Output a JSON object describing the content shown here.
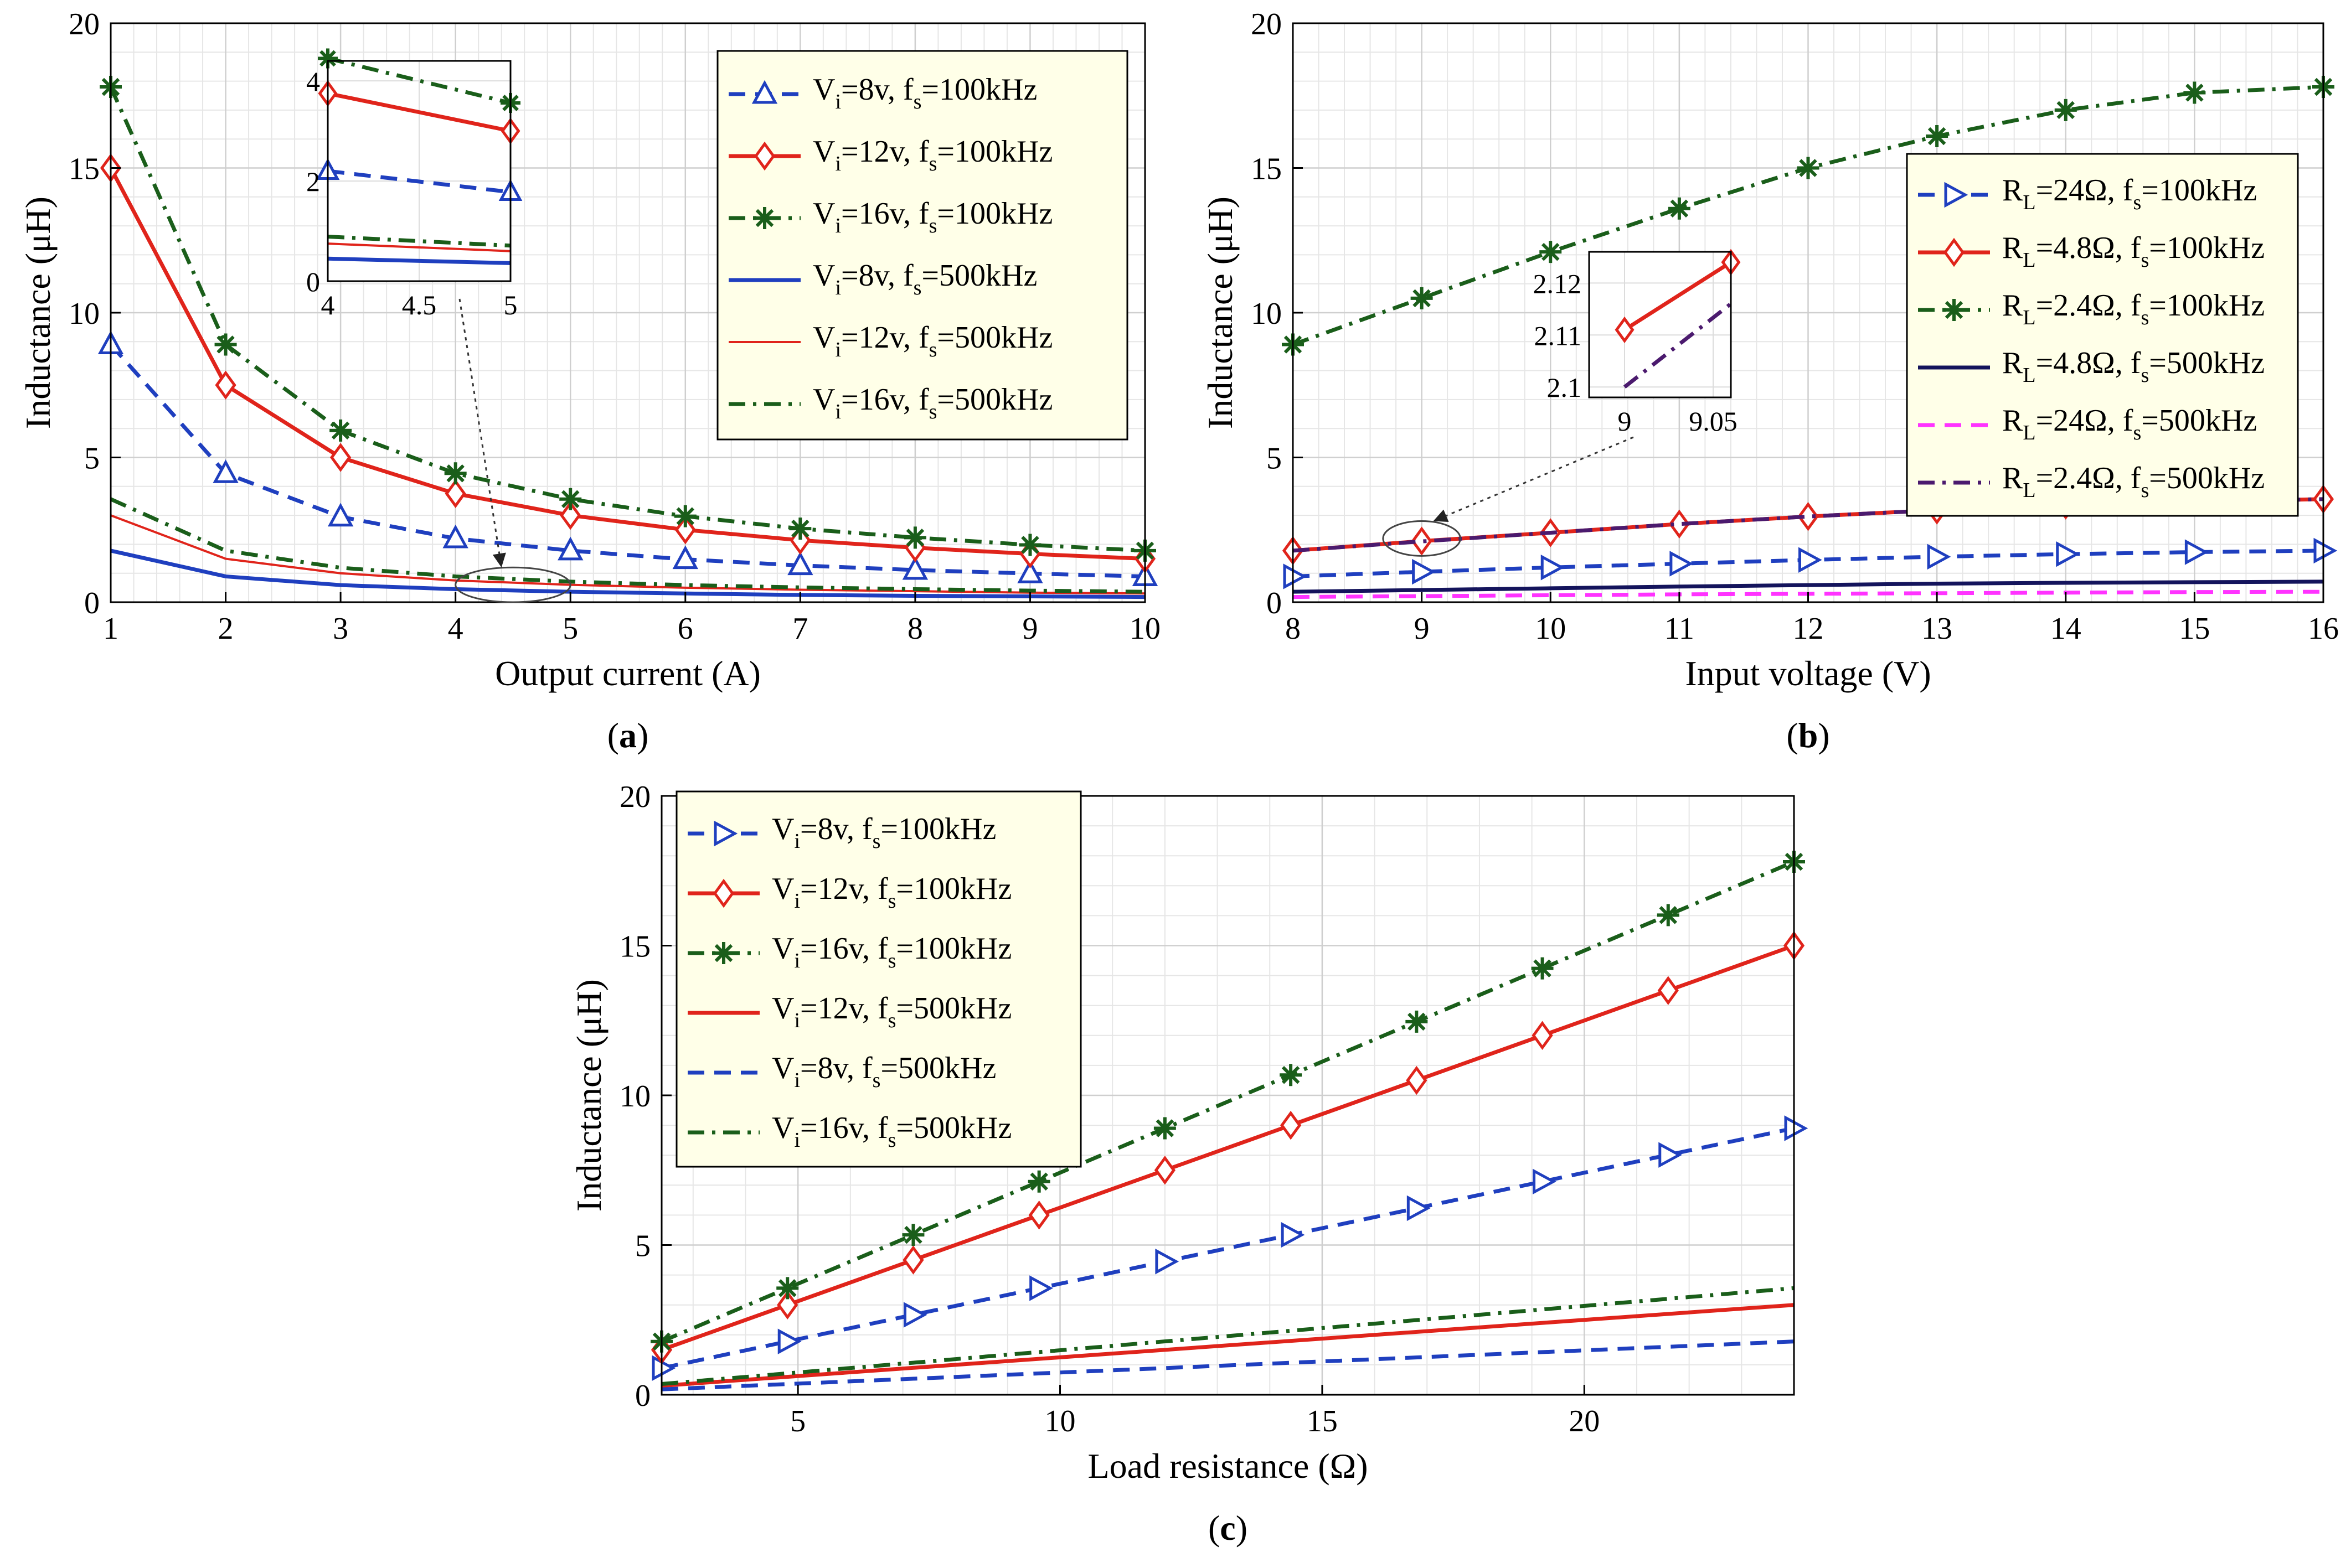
{
  "chart_data": [
    {
      "id": "a",
      "type": "line",
      "panel_label_open": "(",
      "panel_label_letter": "a",
      "panel_label_close": ")",
      "xlabel": "Output current (A)",
      "ylabel": "Inductance (μH)",
      "xlim": [
        1,
        10
      ],
      "ylim": [
        0,
        20
      ],
      "xticks": [
        1,
        2,
        3,
        4,
        5,
        6,
        7,
        8,
        9,
        10
      ],
      "yticks": [
        0,
        5,
        10,
        15,
        20
      ],
      "grid": true,
      "legend_position": "top-right",
      "series": [
        {
          "name": "Vi=8v, fs=100kHz",
          "var": "V",
          "var_sub": "i",
          "var_val": "=8v, ",
          "f_sub": "s",
          "f_val": "=100kHz",
          "color": "#1f3fbf",
          "dash": "dashed",
          "marker": "triangle-up",
          "x": [
            1,
            2,
            3,
            4,
            5,
            6,
            7,
            8,
            9,
            10
          ],
          "values": [
            8.9,
            4.45,
            2.95,
            2.2,
            1.78,
            1.48,
            1.27,
            1.11,
            0.99,
            0.89
          ]
        },
        {
          "name": "Vi=12v, fs=100kHz",
          "var": "V",
          "var_sub": "i",
          "var_val": "=12v, ",
          "f_sub": "s",
          "f_val": "=100kHz",
          "color": "#e0241b",
          "dash": "solid",
          "marker": "diamond",
          "x": [
            1,
            2,
            3,
            4,
            5,
            6,
            7,
            8,
            9,
            10
          ],
          "values": [
            15.0,
            7.5,
            5.0,
            3.75,
            3.0,
            2.5,
            2.14,
            1.88,
            1.67,
            1.5
          ]
        },
        {
          "name": "Vi=16v, fs=100kHz",
          "var": "V",
          "var_sub": "i",
          "var_val": "=16v, ",
          "f_sub": "s",
          "f_val": "=100kHz",
          "color": "#1a5e1a",
          "dash": "dashdot",
          "marker": "star",
          "x": [
            1,
            2,
            3,
            4,
            5,
            6,
            7,
            8,
            9,
            10
          ],
          "values": [
            17.8,
            8.9,
            5.93,
            4.45,
            3.56,
            2.97,
            2.54,
            2.23,
            1.98,
            1.78
          ]
        },
        {
          "name": "Vi=8v, fs=500kHz",
          "var": "V",
          "var_sub": "i",
          "var_val": "=8v, ",
          "f_sub": "s",
          "f_val": "=500kHz",
          "color": "#1f3fbf",
          "dash": "solid",
          "marker": "none",
          "x": [
            1,
            2,
            3,
            4,
            5,
            6,
            7,
            8,
            9,
            10
          ],
          "values": [
            1.78,
            0.89,
            0.59,
            0.45,
            0.36,
            0.3,
            0.25,
            0.22,
            0.2,
            0.18
          ]
        },
        {
          "name": "Vi=12v, fs=500kHz",
          "var": "V",
          "var_sub": "i",
          "var_val": "=12v, ",
          "f_sub": "s",
          "f_val": "=500kHz",
          "color": "#e0241b",
          "dash": "solid-thin",
          "marker": "none",
          "x": [
            1,
            2,
            3,
            4,
            5,
            6,
            7,
            8,
            9,
            10
          ],
          "values": [
            3.0,
            1.5,
            1.0,
            0.75,
            0.6,
            0.5,
            0.43,
            0.38,
            0.33,
            0.3
          ]
        },
        {
          "name": "Vi=16v, fs=500kHz",
          "var": "V",
          "var_sub": "i",
          "var_val": "=16v, ",
          "f_sub": "s",
          "f_val": "=500kHz",
          "color": "#1a5e1a",
          "dash": "dashdot",
          "marker": "none",
          "x": [
            1,
            2,
            3,
            4,
            5,
            6,
            7,
            8,
            9,
            10
          ],
          "values": [
            3.56,
            1.78,
            1.19,
            0.89,
            0.71,
            0.59,
            0.51,
            0.45,
            0.4,
            0.36
          ]
        }
      ],
      "inset": {
        "xlim": [
          4,
          5
        ],
        "ylim": [
          0,
          4.4
        ],
        "xticks": [
          4,
          4.5,
          5
        ],
        "xtick_labels": [
          "4",
          "4.5",
          "5"
        ],
        "yticks": [
          0,
          2,
          4
        ],
        "ytick_labels": [
          "0",
          "2",
          "4"
        ],
        "series": [
          {
            "color": "#1f3fbf",
            "dash": "dashed",
            "marker": "triangle-up",
            "x": [
              4,
              5
            ],
            "values": [
              2.2,
              1.78
            ]
          },
          {
            "color": "#e0241b",
            "dash": "solid",
            "marker": "diamond",
            "x": [
              4,
              5
            ],
            "values": [
              3.75,
              3.0
            ]
          },
          {
            "color": "#1a5e1a",
            "dash": "dashdot",
            "marker": "star",
            "x": [
              4,
              5
            ],
            "values": [
              4.45,
              3.56
            ]
          },
          {
            "color": "#1f3fbf",
            "dash": "solid",
            "marker": "none",
            "x": [
              4,
              5
            ],
            "values": [
              0.45,
              0.36
            ]
          },
          {
            "color": "#e0241b",
            "dash": "solid-thin",
            "marker": "none",
            "x": [
              4,
              5
            ],
            "values": [
              0.75,
              0.6
            ]
          },
          {
            "color": "#1a5e1a",
            "dash": "dashdot",
            "marker": "none",
            "x": [
              4,
              5
            ],
            "values": [
              0.89,
              0.71
            ]
          }
        ]
      },
      "zoom_ellipse": {
        "cx": 4.5,
        "cy": 0.6,
        "rx": 0.5,
        "ry": 0.6
      }
    },
    {
      "id": "b",
      "type": "line",
      "panel_label_open": "(",
      "panel_label_letter": "b",
      "panel_label_close": ")",
      "xlabel": "Input voltage (V)",
      "ylabel": "Inductance (μH)",
      "xlim": [
        8,
        16
      ],
      "ylim": [
        0,
        20
      ],
      "xticks": [
        8,
        9,
        10,
        11,
        12,
        13,
        14,
        15,
        16
      ],
      "yticks": [
        0,
        5,
        10,
        15,
        20
      ],
      "grid": true,
      "legend_position": "middle-right",
      "series": [
        {
          "name": "RL=24Ω, fs=100kHz",
          "var": "R",
          "var_sub": "L",
          "var_val": "=24Ω, ",
          "f_sub": "s",
          "f_val": "=100kHz",
          "color": "#1f3fbf",
          "dash": "dashed",
          "marker": "triangle-right",
          "x": [
            8,
            9,
            10,
            11,
            12,
            13,
            14,
            15,
            16
          ],
          "values": [
            0.89,
            1.05,
            1.2,
            1.33,
            1.46,
            1.57,
            1.66,
            1.73,
            1.78
          ]
        },
        {
          "name": "RL=4.8Ω, fs=100kHz",
          "var": "R",
          "var_sub": "L",
          "var_val": "=4.8Ω, ",
          "f_sub": "s",
          "f_val": "=100kHz",
          "color": "#e0241b",
          "dash": "solid",
          "marker": "diamond",
          "x": [
            8,
            9,
            10,
            11,
            12,
            13,
            14,
            15,
            16
          ],
          "values": [
            1.78,
            2.11,
            2.4,
            2.7,
            2.96,
            3.18,
            3.35,
            3.47,
            3.56
          ]
        },
        {
          "name": "RL=2.4Ω, fs=100kHz",
          "var": "R",
          "var_sub": "L",
          "var_val": "=2.4Ω, ",
          "f_sub": "s",
          "f_val": "=100kHz",
          "color": "#1a5e1a",
          "dash": "dashdot",
          "marker": "star",
          "x": [
            8,
            9,
            10,
            11,
            12,
            13,
            14,
            15,
            16
          ],
          "values": [
            8.9,
            10.5,
            12.1,
            13.6,
            15.0,
            16.1,
            17.0,
            17.6,
            17.8
          ]
        },
        {
          "name": "RL=4.8Ω, fs=500kHz",
          "var": "R",
          "var_sub": "L",
          "var_val": "=4.8Ω, ",
          "f_sub": "s",
          "f_val": "=500kHz",
          "color": "#14145c",
          "dash": "solid",
          "marker": "none",
          "x": [
            8,
            9,
            10,
            11,
            12,
            13,
            14,
            15,
            16
          ],
          "values": [
            0.36,
            0.42,
            0.48,
            0.54,
            0.59,
            0.64,
            0.67,
            0.69,
            0.71
          ]
        },
        {
          "name": "RL=24Ω, fs=500kHz",
          "var": "R",
          "var_sub": "L",
          "var_val": "=24Ω, ",
          "f_sub": "s",
          "f_val": "=500kHz",
          "color": "#ff33ff",
          "dash": "dashed",
          "marker": "none",
          "x": [
            8,
            9,
            10,
            11,
            12,
            13,
            14,
            15,
            16
          ],
          "values": [
            0.18,
            0.21,
            0.24,
            0.27,
            0.29,
            0.31,
            0.33,
            0.35,
            0.36
          ]
        },
        {
          "name": "RL=2.4Ω, fs=500kHz",
          "var": "R",
          "var_sub": "L",
          "var_val": "=2.4Ω, ",
          "f_sub": "s",
          "f_val": "=500kHz",
          "color": "#4b1a6e",
          "dash": "dashdot",
          "marker": "none",
          "x": [
            8,
            9,
            10,
            11,
            12,
            13,
            14,
            15,
            16
          ],
          "values": [
            1.78,
            2.1,
            2.4,
            2.7,
            2.96,
            3.18,
            3.35,
            3.47,
            3.56
          ]
        }
      ],
      "inset": {
        "xlim": [
          8.98,
          9.06
        ],
        "ylim": [
          2.098,
          2.126
        ],
        "xticks": [
          9,
          9.05
        ],
        "xtick_labels": [
          "9",
          "9.05"
        ],
        "yticks": [
          2.1,
          2.11,
          2.12
        ],
        "ytick_labels": [
          "2.1",
          "2.11",
          "2.12"
        ],
        "series": [
          {
            "color": "#e0241b",
            "dash": "solid",
            "marker": "diamond",
            "x": [
              9,
              9.06
            ],
            "values": [
              2.111,
              2.124
            ]
          },
          {
            "color": "#4b1a6e",
            "dash": "dashdot",
            "marker": "none",
            "x": [
              9,
              9.06
            ],
            "values": [
              2.1,
              2.116
            ]
          }
        ]
      },
      "zoom_ellipse": {
        "cx": 9.0,
        "cy": 2.2,
        "rx": 0.3,
        "ry": 0.6
      }
    },
    {
      "id": "c",
      "type": "line",
      "panel_label_open": "(",
      "panel_label_letter": "c",
      "panel_label_close": ")",
      "xlabel": "Load resistance (Ω)",
      "ylabel": "Inductance (μH)",
      "xlim": [
        2.4,
        24
      ],
      "ylim": [
        0,
        20
      ],
      "xticks": [
        5,
        10,
        15,
        20
      ],
      "yticks": [
        0,
        5,
        10,
        15,
        20
      ],
      "grid": true,
      "legend_position": "top-left",
      "series": [
        {
          "name": "Vi=8v, fs=100kHz",
          "var": "V",
          "var_sub": "i",
          "var_val": "=8v, ",
          "f_sub": "s",
          "f_val": "=100kHz",
          "color": "#1f3fbf",
          "dash": "dashed",
          "marker": "triangle-right",
          "x": [
            2.4,
            4.8,
            7.2,
            9.6,
            12,
            14.4,
            16.8,
            19.2,
            21.6,
            24
          ],
          "values": [
            0.89,
            1.78,
            2.67,
            3.56,
            4.45,
            5.34,
            6.23,
            7.12,
            8.01,
            8.9
          ]
        },
        {
          "name": "Vi=12v, fs=100kHz",
          "var": "V",
          "var_sub": "i",
          "var_val": "=12v, ",
          "f_sub": "s",
          "f_val": "=100kHz",
          "color": "#e0241b",
          "dash": "solid",
          "marker": "diamond",
          "x": [
            2.4,
            4.8,
            7.2,
            9.6,
            12,
            14.4,
            16.8,
            19.2,
            21.6,
            24
          ],
          "values": [
            1.5,
            3.0,
            4.5,
            6.0,
            7.5,
            9.0,
            10.5,
            12.0,
            13.5,
            15.0
          ]
        },
        {
          "name": "Vi=16v, fs=100kHz",
          "var": "V",
          "var_sub": "i",
          "var_val": "=16v, ",
          "f_sub": "s",
          "f_val": "=100kHz",
          "color": "#1a5e1a",
          "dash": "dashdot",
          "marker": "star",
          "x": [
            2.4,
            4.8,
            7.2,
            9.6,
            12,
            14.4,
            16.8,
            19.2,
            21.6,
            24
          ],
          "values": [
            1.78,
            3.56,
            5.34,
            7.12,
            8.9,
            10.68,
            12.46,
            14.24,
            16.02,
            17.8
          ]
        },
        {
          "name": "Vi=12v, fs=500kHz",
          "var": "V",
          "var_sub": "i",
          "var_val": "=12v, ",
          "f_sub": "s",
          "f_val": "=500kHz",
          "color": "#e0241b",
          "dash": "solid",
          "marker": "none",
          "x": [
            2.4,
            24
          ],
          "values": [
            0.3,
            3.0
          ]
        },
        {
          "name": "Vi=8v, fs=500kHz",
          "var": "V",
          "var_sub": "i",
          "var_val": "=8v, ",
          "f_sub": "s",
          "f_val": "=500kHz",
          "color": "#1f3fbf",
          "dash": "dashed",
          "marker": "none",
          "x": [
            2.4,
            24
          ],
          "values": [
            0.18,
            1.78
          ]
        },
        {
          "name": "Vi=16v, fs=500kHz",
          "var": "V",
          "var_sub": "i",
          "var_val": "=16v, ",
          "f_sub": "s",
          "f_val": "=500kHz",
          "color": "#1a5e1a",
          "dash": "dashdot",
          "marker": "none",
          "x": [
            2.4,
            24
          ],
          "values": [
            0.36,
            3.56
          ]
        }
      ]
    }
  ]
}
